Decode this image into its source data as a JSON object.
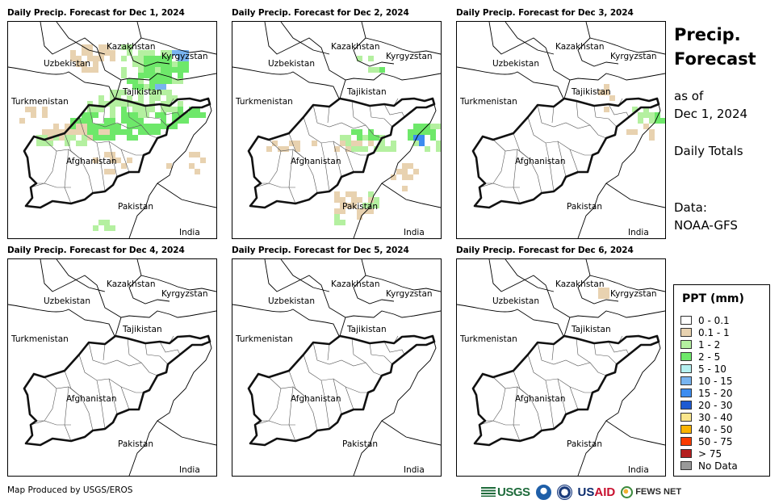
{
  "panels": [
    {
      "title": "Daily Precip. Forecast for Dec 1, 2024",
      "precip_level": "heavy"
    },
    {
      "title": "Daily Precip. Forecast for Dec 2, 2024",
      "precip_level": "moderate"
    },
    {
      "title": "Daily Precip. Forecast for Dec 3, 2024",
      "precip_level": "light"
    },
    {
      "title": "Daily Precip. Forecast for Dec 4, 2024",
      "precip_level": "none"
    },
    {
      "title": "Daily Precip. Forecast for Dec 5, 2024",
      "precip_level": "none"
    },
    {
      "title": "Daily Precip. Forecast for Dec 6, 2024",
      "precip_level": "trace"
    }
  ],
  "country_labels": {
    "kazakhstan": "Kazakhstan",
    "kyrgyzstan": "Kyrgyzstan",
    "uzbekistan": "Uzbekistan",
    "tajikistan": "Tajikistan",
    "turkmenistan": "Turkmenistan",
    "afghanistan": "Afghanistan",
    "pakistan": "Pakistan",
    "india": "India"
  },
  "side": {
    "title_line1": "Precip.",
    "title_line2": "Forecast",
    "as_of": "as of",
    "date": "Dec 1, 2024",
    "totals": "Daily Totals",
    "data_label": "Data:",
    "data_source": "NOAA-GFS"
  },
  "legend": {
    "title": "PPT (mm)",
    "items": [
      {
        "label": "0 - 0.1",
        "color": "#ffffff"
      },
      {
        "label": "0.1 - 1",
        "color": "#e8d2b0"
      },
      {
        "label": "1 - 2",
        "color": "#b4f0a0"
      },
      {
        "label": "2 - 5",
        "color": "#6ee86a"
      },
      {
        "label": "5 - 10",
        "color": "#b4f0f0"
      },
      {
        "label": "10 - 15",
        "color": "#78b4f0"
      },
      {
        "label": "15 - 20",
        "color": "#3c8cf0"
      },
      {
        "label": "20 - 30",
        "color": "#1e5ad2"
      },
      {
        "label": "30 - 40",
        "color": "#fae68c"
      },
      {
        "label": "40 - 50",
        "color": "#fab400"
      },
      {
        "label": "50 - 75",
        "color": "#fa3c00"
      },
      {
        "label": "> 75",
        "color": "#b41e1e"
      },
      {
        "label": "No Data",
        "color": "#999999"
      }
    ]
  },
  "footer": {
    "credit": "Map Produced by USGS/EROS",
    "logos": {
      "usgs": "USGS",
      "usaid_us": "US",
      "usaid_aid": "AID",
      "fews": "FEWS NET"
    }
  }
}
